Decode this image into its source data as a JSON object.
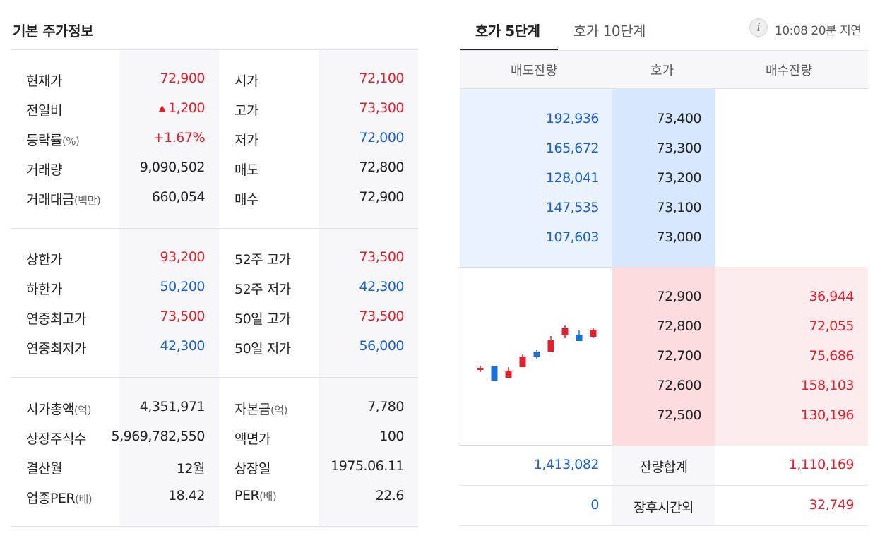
{
  "left": {
    "title": "기본 주가정보",
    "sections": [
      {
        "rows": [
          {
            "label": "현재가",
            "unit": "",
            "value": "72,900",
            "value_color": "red",
            "label2": "시가",
            "unit2": "",
            "value2": "72,100",
            "value2_color": "red"
          },
          {
            "label": "전일비",
            "unit": "",
            "value": "1,200",
            "value_color": "red",
            "arrow": "▲",
            "label2": "고가",
            "unit2": "",
            "value2": "73,300",
            "value2_color": "red"
          },
          {
            "label": "등락률",
            "unit": "(%)",
            "value": "+1.67%",
            "value_color": "red",
            "label2": "저가",
            "unit2": "",
            "value2": "72,000",
            "value2_color": "blue"
          },
          {
            "label": "거래량",
            "unit": "",
            "value": "9,090,502",
            "value_color": "",
            "label2": "매도",
            "unit2": "",
            "value2": "72,800",
            "value2_color": ""
          },
          {
            "label": "거래대금",
            "unit": "(백만)",
            "value": "660,054",
            "value_color": "",
            "label2": "매수",
            "unit2": "",
            "value2": "72,900",
            "value2_color": ""
          }
        ]
      },
      {
        "rows": [
          {
            "label": "상한가",
            "unit": "",
            "value": "93,200",
            "value_color": "red",
            "label2": "52주 고가",
            "unit2": "",
            "value2": "73,500",
            "value2_color": "red"
          },
          {
            "label": "하한가",
            "unit": "",
            "value": "50,200",
            "value_color": "blue",
            "label2": "52주 저가",
            "unit2": "",
            "value2": "42,300",
            "value2_color": "blue"
          },
          {
            "label": "연중최고가",
            "unit": "",
            "value": "73,500",
            "value_color": "red",
            "label2": "50일 고가",
            "unit2": "",
            "value2": "73,500",
            "value2_color": "red"
          },
          {
            "label": "연중최저가",
            "unit": "",
            "value": "42,300",
            "value_color": "blue",
            "label2": "50일 저가",
            "unit2": "",
            "value2": "56,000",
            "value2_color": "blue"
          }
        ]
      },
      {
        "rows": [
          {
            "label": "시가총액",
            "unit": "(억)",
            "value": "4,351,971",
            "value_color": "",
            "label2": "자본금",
            "unit2": "(억)",
            "value2": "7,780",
            "value2_color": ""
          },
          {
            "label": "상장주식수",
            "unit": "",
            "value": "5,969,782,550",
            "value_color": "",
            "label2": "액면가",
            "unit2": "",
            "value2": "100",
            "value2_color": ""
          },
          {
            "label": "결산월",
            "unit": "",
            "value": "12월",
            "value_color": "",
            "label2": "상장일",
            "unit2": "",
            "value2": "1975.06.11",
            "value2_color": ""
          },
          {
            "label": "업종PER",
            "unit": "(배)",
            "value": "18.42",
            "value_color": "",
            "label2": "PER",
            "unit2": "(배)",
            "value2": "22.6",
            "value2_color": ""
          }
        ]
      }
    ]
  },
  "right": {
    "tabs": [
      {
        "label": "호가 5단계",
        "active": true
      },
      {
        "label": "호가 10단계",
        "active": false
      }
    ],
    "info_icon": "info-icon",
    "delay_text": "10:08 20분 지연",
    "headers": {
      "ask_qty": "매도잔량",
      "price": "호가",
      "bid_qty": "매수잔량"
    },
    "asks": [
      {
        "qty": "192,936",
        "price": "73,400"
      },
      {
        "qty": "165,672",
        "price": "73,300"
      },
      {
        "qty": "128,041",
        "price": "73,200"
      },
      {
        "qty": "147,535",
        "price": "73,100"
      },
      {
        "qty": "107,603",
        "price": "73,000"
      }
    ],
    "bids": [
      {
        "price": "72,900",
        "qty": "36,944"
      },
      {
        "price": "72,800",
        "qty": "72,055"
      },
      {
        "price": "72,700",
        "qty": "75,686"
      },
      {
        "price": "72,600",
        "qty": "158,103"
      },
      {
        "price": "72,500",
        "qty": "130,196"
      }
    ],
    "total": {
      "ask": "1,413,082",
      "label": "잔량합계",
      "bid": "1,110,169"
    },
    "after_hours": {
      "ask": "0",
      "label": "장후시간외",
      "bid": "32,749"
    },
    "candles": [
      {
        "dir": "up"
      },
      {
        "dir": "down"
      },
      {
        "dir": "up"
      },
      {
        "dir": "up"
      },
      {
        "dir": "down"
      },
      {
        "dir": "up"
      },
      {
        "dir": "up"
      },
      {
        "dir": "down"
      },
      {
        "dir": "up"
      }
    ],
    "colors": {
      "up": "#e0202c",
      "down": "#1b6fd8"
    }
  }
}
